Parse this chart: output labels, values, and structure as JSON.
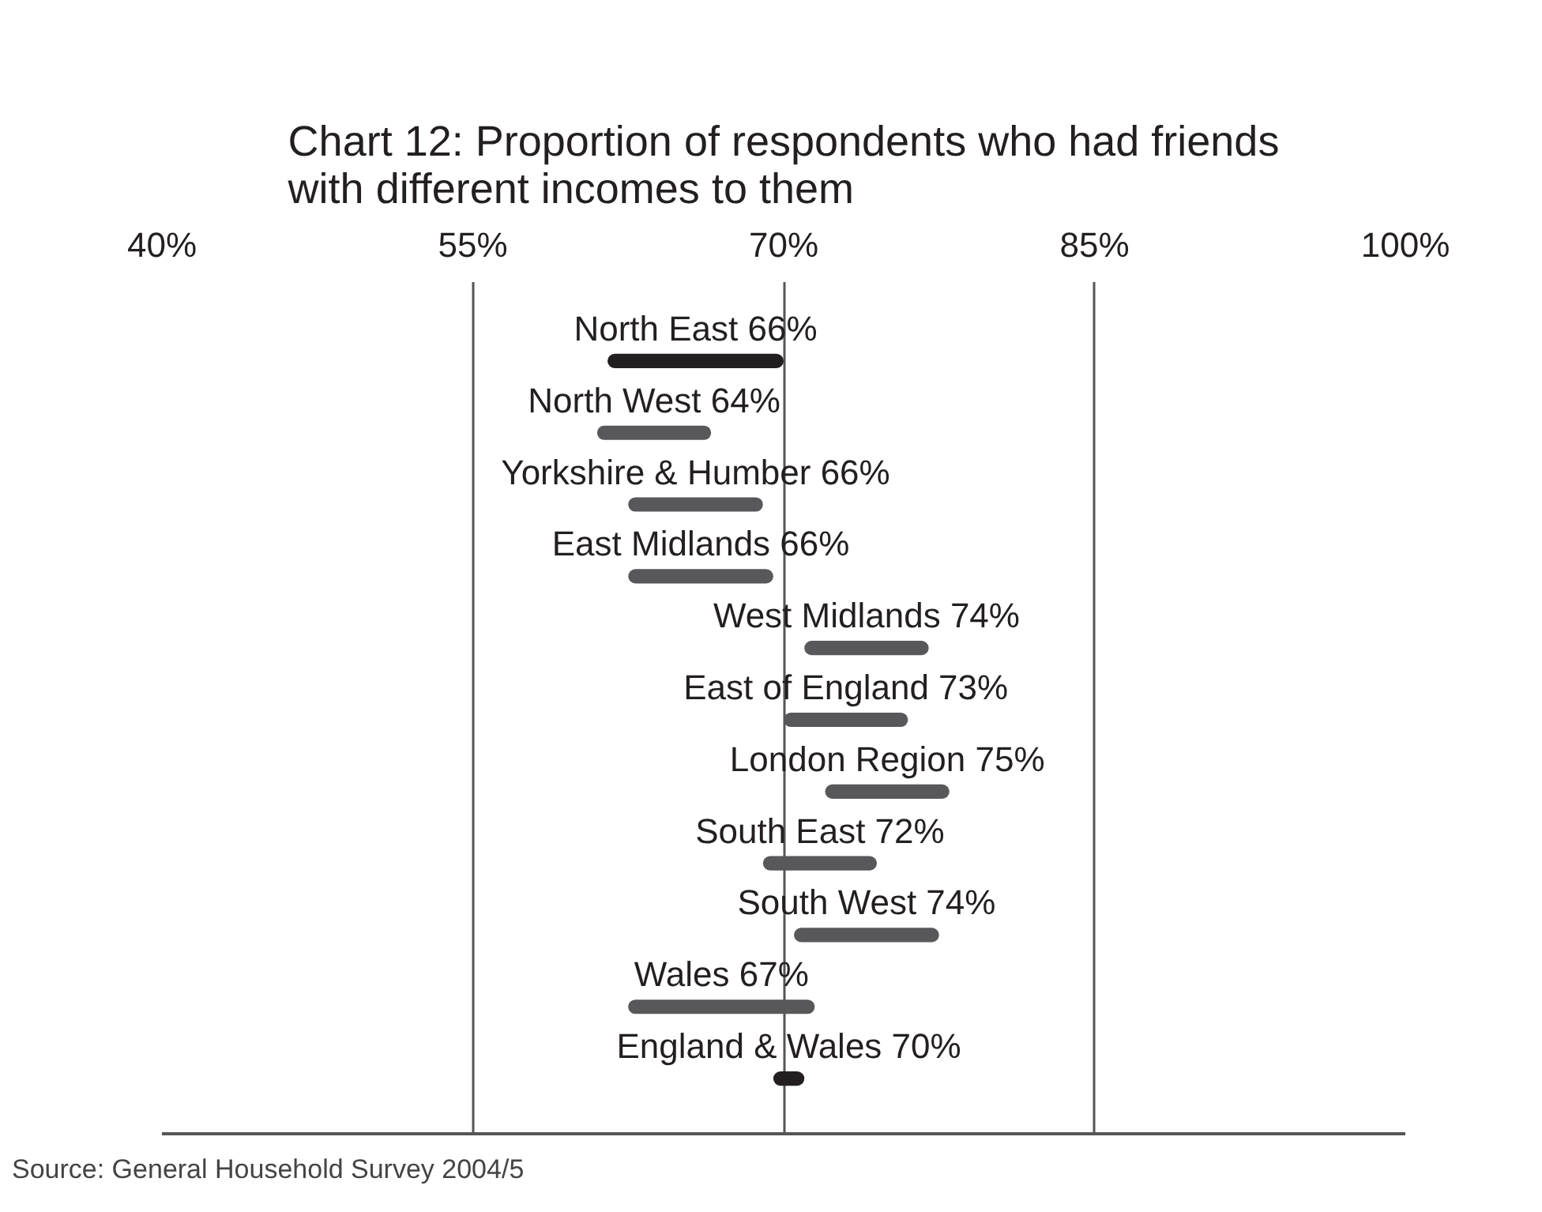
{
  "chart_data": {
    "type": "bar",
    "orientation": "horizontal",
    "title": "Chart 12: Proportion of respondents who had friends with different incomes to them",
    "categories": [
      "North East 66%",
      "North West 64%",
      "Yorkshire & Humber 66%",
      "East Midlands 66%",
      "West Midlands 74%",
      "East of England 73%",
      "London Region 75%",
      "South East 72%",
      "South West 74%",
      "Wales 67%",
      "England & Wales 70%"
    ],
    "base": [
      61.5,
      61,
      62.5,
      62.5,
      71,
      70,
      72,
      69,
      70.5,
      62.5,
      69.5
    ],
    "values": [
      8.5,
      5.5,
      6.5,
      7,
      6,
      6,
      6,
      5.5,
      7,
      9,
      1.5
    ],
    "colors": [
      "#231f20",
      "#58585a",
      "#58585a",
      "#58585a",
      "#58585a",
      "#58585a",
      "#58585a",
      "#58585a",
      "#58585a",
      "#58585a",
      "#231f20"
    ],
    "xlim": [
      40,
      100
    ],
    "xticks": [
      {
        "value": 40,
        "label": "40%"
      },
      {
        "value": 55,
        "label": "55%"
      },
      {
        "value": 70,
        "label": "70%"
      },
      {
        "value": 85,
        "label": "85%"
      },
      {
        "value": 100,
        "label": "100%"
      }
    ],
    "grid": "x",
    "tick_labels": "x",
    "annotations": [
      "Source: General Household Survey 2004/5"
    ]
  }
}
